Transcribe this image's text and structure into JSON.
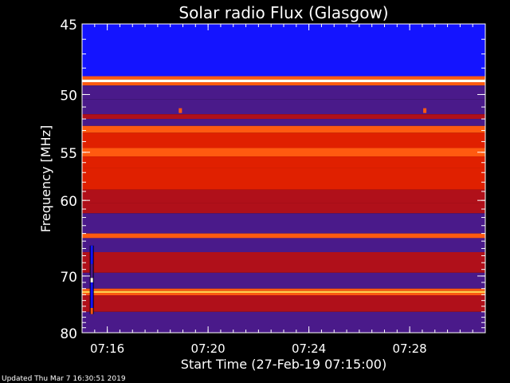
{
  "chart_data": {
    "type": "heatmap",
    "title": "Solar radio Flux (Glasgow)",
    "xlabel": "Start Time (27-Feb-19 07:15:00)",
    "ylabel": "Frequency [MHz]",
    "x_unit": "minutes since 07:15:00",
    "xlim": [
      0.0,
      16.0
    ],
    "ylim": [
      45,
      80
    ],
    "y_scale": "reciprocal",
    "x_ticks": [
      {
        "value": 1,
        "label": "07:16"
      },
      {
        "value": 5,
        "label": "07:20"
      },
      {
        "value": 9,
        "label": "07:24"
      },
      {
        "value": 13,
        "label": "07:28"
      }
    ],
    "y_ticks": [
      {
        "value": 45,
        "label": "45"
      },
      {
        "value": 50,
        "label": "50"
      },
      {
        "value": 55,
        "label": "55"
      },
      {
        "value": 60,
        "label": "60"
      },
      {
        "value": 70,
        "label": "70"
      },
      {
        "value": 80,
        "label": "80"
      }
    ],
    "colors": {
      "blue": "#1414ff",
      "violet": "#4a1a8a",
      "darkred": "#b0101a",
      "red": "#e02000",
      "orange": "#ff5a10",
      "yellow": "#ffd050",
      "white": "#ffffee"
    },
    "bands": [
      {
        "f0": 45.0,
        "f1": 48.6,
        "level": "blue"
      },
      {
        "f0": 48.6,
        "f1": 48.85,
        "level": "orange"
      },
      {
        "f0": 48.85,
        "f1": 49.05,
        "level": "white"
      },
      {
        "f0": 49.05,
        "f1": 49.3,
        "level": "orange"
      },
      {
        "f0": 49.3,
        "f1": 50.4,
        "level": "violet"
      },
      {
        "f0": 50.4,
        "f1": 51.6,
        "level": "violet"
      },
      {
        "f0": 51.6,
        "f1": 52.0,
        "level": "darkred"
      },
      {
        "f0": 52.0,
        "f1": 52.6,
        "level": "violet"
      },
      {
        "f0": 52.6,
        "f1": 53.2,
        "level": "orange"
      },
      {
        "f0": 53.2,
        "f1": 54.6,
        "level": "red"
      },
      {
        "f0": 54.6,
        "f1": 55.4,
        "level": "orange"
      },
      {
        "f0": 55.4,
        "f1": 56.5,
        "level": "red"
      },
      {
        "f0": 56.5,
        "f1": 58.8,
        "level": "red"
      },
      {
        "f0": 58.8,
        "f1": 60.3,
        "level": "darkred"
      },
      {
        "f0": 60.3,
        "f1": 61.5,
        "level": "darkred"
      },
      {
        "f0": 61.5,
        "f1": 64.0,
        "level": "violet"
      },
      {
        "f0": 64.0,
        "f1": 64.6,
        "level": "orange"
      },
      {
        "f0": 64.6,
        "f1": 66.5,
        "level": "violet"
      },
      {
        "f0": 66.5,
        "f1": 69.5,
        "level": "darkred"
      },
      {
        "f0": 69.5,
        "f1": 72.0,
        "level": "violet"
      },
      {
        "f0": 72.0,
        "f1": 72.4,
        "level": "orange"
      },
      {
        "f0": 72.4,
        "f1": 72.7,
        "level": "yellow"
      },
      {
        "f0": 72.7,
        "f1": 73.1,
        "level": "orange"
      },
      {
        "f0": 73.1,
        "f1": 76.0,
        "level": "darkred"
      },
      {
        "f0": 76.0,
        "f1": 80.0,
        "level": "violet"
      }
    ],
    "spots": [
      {
        "t": 3.9,
        "f": 51.3,
        "level": "orange"
      },
      {
        "t": 13.6,
        "f": 51.3,
        "level": "orange"
      }
    ],
    "interference_streak": {
      "t": 0.4,
      "f0": 65.6,
      "f1": 76.4,
      "segments": [
        {
          "f0": 65.6,
          "f1": 68.2,
          "level": "blue"
        },
        {
          "f0": 68.2,
          "f1": 70.3,
          "level": "violet"
        },
        {
          "f0": 70.3,
          "f1": 71.0,
          "level": "white"
        },
        {
          "f0": 71.0,
          "f1": 75.3,
          "level": "blue"
        },
        {
          "f0": 75.3,
          "f1": 76.4,
          "level": "orange"
        }
      ]
    }
  },
  "footer": {
    "updated": "Updated Thu Mar  7 16:30:51 2019"
  }
}
